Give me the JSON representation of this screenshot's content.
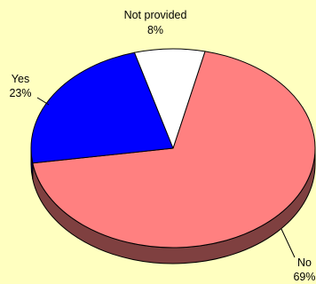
{
  "chart_data": {
    "type": "pie",
    "style": "3d",
    "title": "",
    "slices": [
      {
        "label": "No",
        "value": 69,
        "pct_label": "69%",
        "color": "#FF8080",
        "side_color": "#7F4040"
      },
      {
        "label": "Yes",
        "value": 23,
        "pct_label": "23%",
        "color": "#0000FF",
        "side_color": "#000080"
      },
      {
        "label": "Not provided",
        "value": 8,
        "pct_label": "8%",
        "color": "#FFFFFF",
        "side_color": "#808080"
      }
    ],
    "background": "#FFFFC0"
  }
}
